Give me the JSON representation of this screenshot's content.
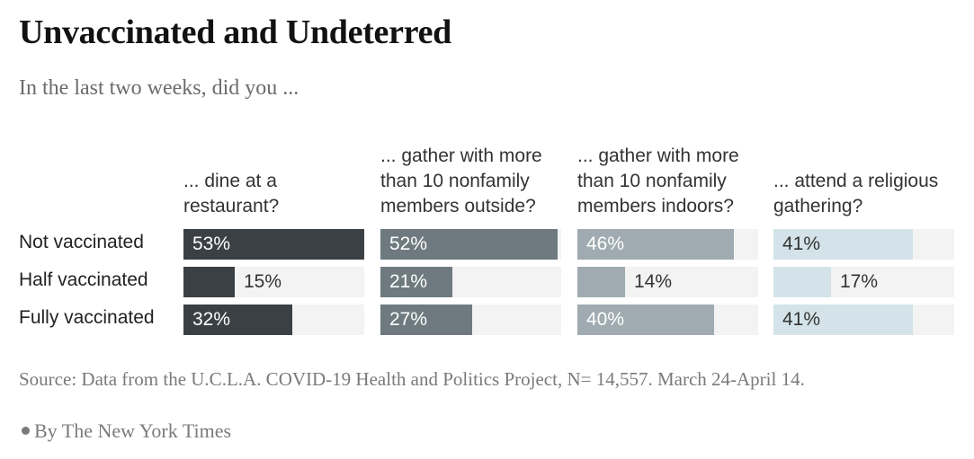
{
  "chart_data": {
    "type": "bar",
    "title": "Unvaccinated and Undeterred",
    "subtitle": "In the last two weeks, did you ...",
    "questions": [
      "... dine at a restaurant?",
      "... gather with more than 10 nonfamily members outside?",
      "... gather with more than 10 nonfamily members indoors?",
      "... attend a religious gathering?"
    ],
    "groups": [
      "Not vaccinated",
      "Half vaccinated",
      "Fully vaccinated"
    ],
    "series": [
      {
        "name": "... dine at a restaurant?",
        "color": "#3b4045",
        "values": [
          53,
          15,
          32
        ],
        "labels": [
          "53%",
          "15%",
          "32%"
        ]
      },
      {
        "name": "... gather with more than 10 nonfamily members outside?",
        "color": "#6e7a7f",
        "values": [
          52,
          21,
          27
        ],
        "labels": [
          "52%",
          "21%",
          "27%"
        ]
      },
      {
        "name": "... gather with more than 10 nonfamily members indoors?",
        "color": "#9fabb0",
        "values": [
          46,
          14,
          40
        ],
        "labels": [
          "46%",
          "14%",
          "40%"
        ]
      },
      {
        "name": "... attend a religious gathering?",
        "color": "#d4e3e9",
        "values": [
          41,
          17,
          41
        ],
        "labels": [
          "41%",
          "17%",
          "41%"
        ]
      }
    ],
    "xlim": [
      0,
      53
    ]
  },
  "source": "Source: Data from the U.C.L.A. COVID-19 Health and Politics Project, N= 14,557. March 24-April 14.",
  "byline": "By The New York Times"
}
